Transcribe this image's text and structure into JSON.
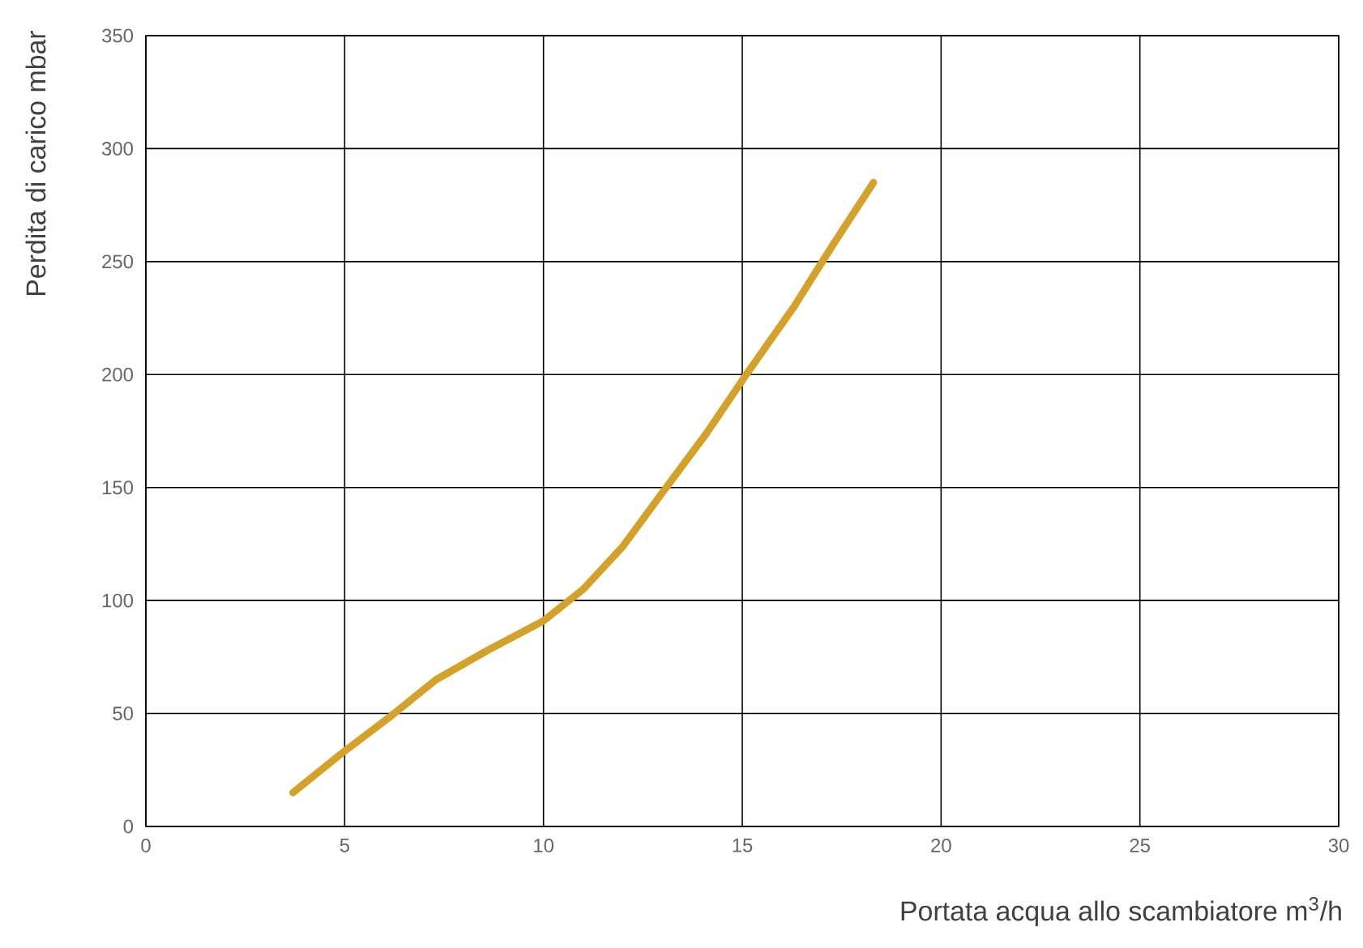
{
  "chart_data": {
    "type": "line",
    "xlabel": "Portata acqua allo scambiatore  m$^{3}$/h",
    "ylabel": "Perdita di carico  mbar",
    "series": [
      {
        "color": "#d4a12a",
        "x": [
          3.7,
          4.9,
          6.1,
          7.3,
          8.6,
          10.0,
          11.0,
          12.0,
          13.0,
          14.1,
          15.1,
          16.3,
          17.3,
          18.3
        ],
        "values": [
          15,
          32,
          48,
          65,
          78,
          91,
          105,
          124,
          148,
          174,
          200,
          230,
          258,
          285
        ]
      }
    ],
    "xlim": [
      0,
      30
    ],
    "xticks": [
      0,
      5,
      10,
      15,
      20,
      25,
      30
    ],
    "ylim": [
      0,
      350
    ],
    "yticks": [
      0,
      50,
      100,
      150,
      200,
      250,
      300,
      350
    ],
    "grid": true
  }
}
